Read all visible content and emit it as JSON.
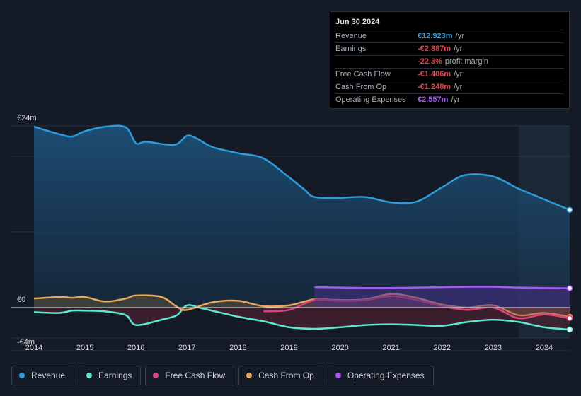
{
  "tooltip": {
    "date": "Jun 30 2024",
    "rows": [
      {
        "label": "Revenue",
        "value": "€12.923m",
        "unit": "/yr",
        "color": "#2d9cdb"
      },
      {
        "label": "Earnings",
        "value": "-€2.887m",
        "unit": "/yr",
        "color": "#e8434b"
      },
      {
        "label": "",
        "value": "-22.3%",
        "unit": "profit margin",
        "color": "#e8434b"
      },
      {
        "label": "Free Cash Flow",
        "value": "-€1.406m",
        "unit": "/yr",
        "color": "#e8434b"
      },
      {
        "label": "Cash From Op",
        "value": "-€1.248m",
        "unit": "/yr",
        "color": "#e8434b"
      },
      {
        "label": "Operating Expenses",
        "value": "€2.557m",
        "unit": "/yr",
        "color": "#a855f7"
      }
    ]
  },
  "legend": [
    {
      "label": "Revenue",
      "color": "#2d9cdb"
    },
    {
      "label": "Earnings",
      "color": "#5ee8d0"
    },
    {
      "label": "Free Cash Flow",
      "color": "#d9467f"
    },
    {
      "label": "Cash From Op",
      "color": "#e8a75a"
    },
    {
      "label": "Operating Expenses",
      "color": "#a855f7"
    }
  ],
  "chart_data": {
    "type": "area",
    "title": "",
    "xlabel": "",
    "ylabel": "",
    "y_tick_labels": [
      "€24m",
      "€0",
      "-€4m"
    ],
    "ylim": [
      -4,
      24
    ],
    "xlim": [
      2014.0,
      2024.5
    ],
    "x_ticks": [
      2014,
      2015,
      2016,
      2017,
      2018,
      2019,
      2020,
      2021,
      2022,
      2023,
      2024
    ],
    "x_tick_labels": [
      "2014",
      "2015",
      "2016",
      "2017",
      "2018",
      "2019",
      "2020",
      "2021",
      "2022",
      "2023",
      "2024"
    ],
    "forecast_start": 2023.5,
    "series": [
      {
        "name": "Revenue",
        "color": "#2d9cdb",
        "fill": true,
        "points": [
          [
            2014.0,
            23.9
          ],
          [
            2014.5,
            22.9
          ],
          [
            2014.75,
            22.6
          ],
          [
            2015.0,
            23.3
          ],
          [
            2015.4,
            23.9
          ],
          [
            2015.8,
            23.8
          ],
          [
            2016.0,
            21.7
          ],
          [
            2016.2,
            21.9
          ],
          [
            2016.75,
            21.5
          ],
          [
            2017.0,
            22.7
          ],
          [
            2017.2,
            22.3
          ],
          [
            2017.5,
            21.2
          ],
          [
            2018.0,
            20.4
          ],
          [
            2018.5,
            19.7
          ],
          [
            2019.0,
            17.2
          ],
          [
            2019.3,
            15.6
          ],
          [
            2019.5,
            14.6
          ],
          [
            2020.0,
            14.5
          ],
          [
            2020.5,
            14.6
          ],
          [
            2021.0,
            13.9
          ],
          [
            2021.5,
            14.0
          ],
          [
            2022.0,
            15.9
          ],
          [
            2022.45,
            17.5
          ],
          [
            2023.0,
            17.3
          ],
          [
            2023.5,
            15.7
          ],
          [
            2024.0,
            14.3
          ],
          [
            2024.5,
            12.9
          ]
        ]
      },
      {
        "name": "Earnings",
        "color": "#5ee8d0",
        "fill": true,
        "points": [
          [
            2014.0,
            -0.6
          ],
          [
            2014.5,
            -0.7
          ],
          [
            2014.75,
            -0.4
          ],
          [
            2015.0,
            -0.4
          ],
          [
            2015.4,
            -0.5
          ],
          [
            2015.8,
            -1.0
          ],
          [
            2016.0,
            -2.3
          ],
          [
            2016.5,
            -1.6
          ],
          [
            2016.8,
            -1.0
          ],
          [
            2017.0,
            0.3
          ],
          [
            2017.3,
            -0.1
          ],
          [
            2018.0,
            -1.2
          ],
          [
            2018.5,
            -1.8
          ],
          [
            2019.0,
            -2.6
          ],
          [
            2019.5,
            -2.8
          ],
          [
            2020.0,
            -2.6
          ],
          [
            2020.5,
            -2.3
          ],
          [
            2021.0,
            -2.2
          ],
          [
            2021.5,
            -2.3
          ],
          [
            2022.0,
            -2.4
          ],
          [
            2022.5,
            -1.9
          ],
          [
            2023.0,
            -1.6
          ],
          [
            2023.5,
            -1.9
          ],
          [
            2024.0,
            -2.6
          ],
          [
            2024.5,
            -2.9
          ]
        ]
      },
      {
        "name": "Free Cash Flow",
        "color": "#d9467f",
        "fill": true,
        "points": [
          [
            2018.5,
            -0.5
          ],
          [
            2019.0,
            -0.3
          ],
          [
            2019.5,
            1.0
          ],
          [
            2020.0,
            0.9
          ],
          [
            2020.5,
            1.0
          ],
          [
            2021.0,
            1.5
          ],
          [
            2021.5,
            1.0
          ],
          [
            2022.0,
            0.2
          ],
          [
            2022.5,
            -0.3
          ],
          [
            2023.0,
            0.0
          ],
          [
            2023.5,
            -1.4
          ],
          [
            2024.0,
            -0.9
          ],
          [
            2024.5,
            -1.4
          ]
        ]
      },
      {
        "name": "Cash From Op",
        "color": "#e8a75a",
        "fill": true,
        "points": [
          [
            2014.0,
            1.2
          ],
          [
            2014.5,
            1.4
          ],
          [
            2014.75,
            1.3
          ],
          [
            2015.0,
            1.4
          ],
          [
            2015.4,
            0.8
          ],
          [
            2015.8,
            1.2
          ],
          [
            2016.0,
            1.6
          ],
          [
            2016.5,
            1.4
          ],
          [
            2016.8,
            0.1
          ],
          [
            2017.0,
            -0.3
          ],
          [
            2017.5,
            0.7
          ],
          [
            2018.0,
            0.9
          ],
          [
            2018.5,
            0.2
          ],
          [
            2019.0,
            0.3
          ],
          [
            2019.5,
            1.1
          ],
          [
            2020.0,
            1.0
          ],
          [
            2020.5,
            1.1
          ],
          [
            2021.0,
            1.8
          ],
          [
            2021.5,
            1.3
          ],
          [
            2022.0,
            0.4
          ],
          [
            2022.5,
            0.0
          ],
          [
            2023.0,
            0.3
          ],
          [
            2023.5,
            -1.0
          ],
          [
            2024.0,
            -0.7
          ],
          [
            2024.5,
            -1.2
          ]
        ]
      },
      {
        "name": "Operating Expenses",
        "color": "#a855f7",
        "fill": true,
        "points": [
          [
            2019.5,
            2.7
          ],
          [
            2020.0,
            2.65
          ],
          [
            2020.5,
            2.6
          ],
          [
            2021.0,
            2.6
          ],
          [
            2021.5,
            2.65
          ],
          [
            2022.0,
            2.7
          ],
          [
            2022.5,
            2.75
          ],
          [
            2023.0,
            2.75
          ],
          [
            2023.5,
            2.65
          ],
          [
            2024.0,
            2.6
          ],
          [
            2024.5,
            2.56
          ]
        ]
      }
    ]
  }
}
